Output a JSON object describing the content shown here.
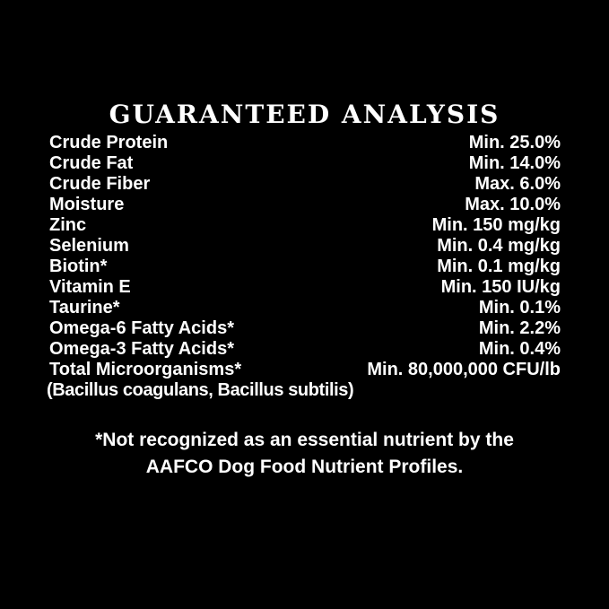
{
  "page": {
    "background_color": "#000000",
    "text_color": "#ffffff"
  },
  "header": {
    "title": "GUARANTEED ANALYSIS"
  },
  "analysis": {
    "rows": [
      {
        "label": "Crude Protein",
        "value": "Min. 25.0%"
      },
      {
        "label": "Crude Fat",
        "value": "Min. 14.0%"
      },
      {
        "label": "Crude Fiber",
        "value": "Max. 6.0%"
      },
      {
        "label": "Moisture",
        "value": "Max. 10.0%"
      },
      {
        "label": "Zinc",
        "value": "Min. 150 mg/kg"
      },
      {
        "label": "Selenium",
        "value": "Min. 0.4 mg/kg"
      },
      {
        "label": "Biotin*",
        "value": "Min. 0.1 mg/kg"
      },
      {
        "label": "Vitamin E",
        "value": "Min. 150 IU/kg"
      },
      {
        "label": "Taurine*",
        "value": "Min. 0.1%"
      },
      {
        "label": "Omega-6 Fatty Acids*",
        "value": "Min. 2.2%"
      },
      {
        "label": "Omega-3 Fatty Acids*",
        "value": "Min. 0.4%"
      },
      {
        "label": "Total Microorganisms*",
        "value": "Min. 80,000,000 CFU/lb"
      }
    ],
    "strain_note": "(Bacillus coagulans, Bacillus subtilis)"
  },
  "footnote": {
    "lines": [
      "*Not recognized as an essential nutrient by the",
      "AAFCO Dog Food Nutrient Profiles."
    ]
  }
}
